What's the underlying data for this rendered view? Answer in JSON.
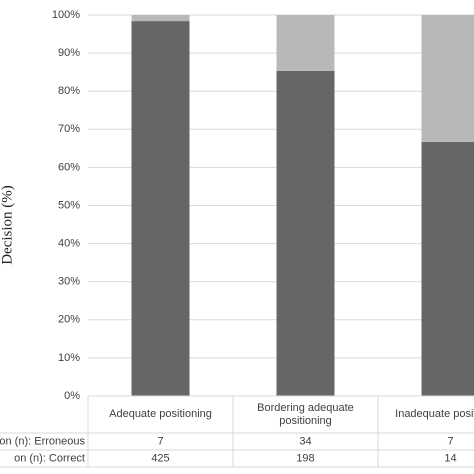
{
  "chart_data": {
    "type": "stacked_bar",
    "y_label": "Decision (%)",
    "categories": [
      "Adequate positioning",
      "Bordering adequate positioning",
      "Inadequate positioning"
    ],
    "series": [
      {
        "name": "on (n): Correct",
        "color": "#666666",
        "values": [
          98.4,
          85.3,
          66.7
        ]
      },
      {
        "name": "on (n): Erroneous",
        "color": "#b8b8b8",
        "values": [
          1.6,
          14.7,
          33.3
        ]
      }
    ],
    "ylim": [
      0,
      100
    ],
    "yticks": [
      {
        "value": 0,
        "label": "0%"
      },
      {
        "value": 10,
        "label": "10%"
      },
      {
        "value": 20,
        "label": "20%"
      },
      {
        "value": 30,
        "label": "30%"
      },
      {
        "value": 40,
        "label": "40%"
      },
      {
        "value": 50,
        "label": "50%"
      },
      {
        "value": 60,
        "label": "60%"
      },
      {
        "value": 70,
        "label": "70%"
      },
      {
        "value": 80,
        "label": "80%"
      },
      {
        "value": 90,
        "label": "90%"
      },
      {
        "value": 100,
        "label": "100%"
      }
    ],
    "grid": true,
    "data_table": [
      {
        "label": "on (n): Erroneous",
        "values": [
          7,
          34,
          7
        ]
      },
      {
        "label": "on (n): Correct",
        "values": [
          425,
          198,
          14
        ]
      }
    ]
  }
}
